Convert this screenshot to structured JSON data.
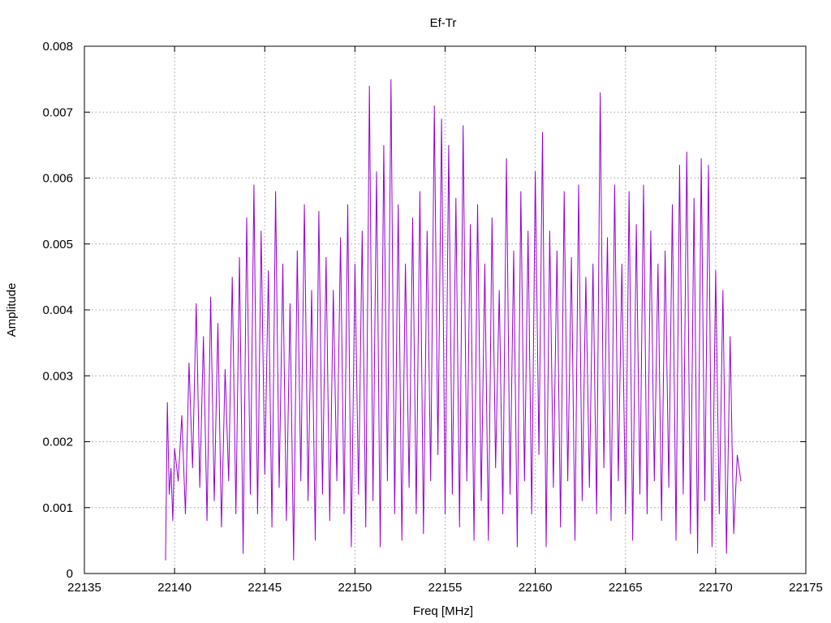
{
  "chart_data": {
    "type": "line",
    "title": "Ef-Tr",
    "xlabel": "Freq [MHz]",
    "ylabel": "Amplitude",
    "xlim": [
      22135,
      22175
    ],
    "ylim": [
      0,
      0.008
    ],
    "xticks": [
      "22135",
      "22140",
      "22145",
      "22150",
      "22155",
      "22160",
      "22165",
      "22170",
      "22175"
    ],
    "yticks": [
      "0",
      "0.001",
      "0.002",
      "0.003",
      "0.004",
      "0.005",
      "0.006",
      "0.007",
      "0.008"
    ],
    "grid": true,
    "legend": "none",
    "series_color": "#9400d3",
    "series": [
      {
        "x": [
          22139.5,
          22139.6,
          22139.7,
          22139.8,
          22139.9,
          22140.0,
          22140.2,
          22140.4,
          22140.6,
          22140.8,
          22141.0,
          22141.2,
          22141.4,
          22141.6,
          22141.8,
          22142.0,
          22142.2,
          22142.4,
          22142.6,
          22142.8,
          22143.0,
          22143.2,
          22143.4,
          22143.6,
          22143.8,
          22144.0,
          22144.2,
          22144.4,
          22144.6,
          22144.8,
          22145.0,
          22145.2,
          22145.4,
          22145.6,
          22145.8,
          22146.0,
          22146.2,
          22146.4,
          22146.6,
          22146.8,
          22147.0,
          22147.2,
          22147.4,
          22147.6,
          22147.8,
          22148.0,
          22148.2,
          22148.4,
          22148.6,
          22148.8,
          22149.0,
          22149.2,
          22149.4,
          22149.6,
          22149.8,
          22150.0,
          22150.2,
          22150.4,
          22150.6,
          22150.8,
          22151.0,
          22151.2,
          22151.4,
          22151.6,
          22151.8,
          22152.0,
          22152.2,
          22152.4,
          22152.6,
          22152.8,
          22153.0,
          22153.2,
          22153.4,
          22153.6,
          22153.8,
          22154.0,
          22154.2,
          22154.4,
          22154.6,
          22154.8,
          22155.0,
          22155.2,
          22155.4,
          22155.6,
          22155.8,
          22156.0,
          22156.2,
          22156.4,
          22156.6,
          22156.8,
          22157.0,
          22157.2,
          22157.4,
          22157.6,
          22157.8,
          22158.0,
          22158.2,
          22158.4,
          22158.6,
          22158.8,
          22159.0,
          22159.2,
          22159.4,
          22159.6,
          22159.8,
          22160.0,
          22160.2,
          22160.4,
          22160.6,
          22160.8,
          22161.0,
          22161.2,
          22161.4,
          22161.6,
          22161.8,
          22162.0,
          22162.2,
          22162.4,
          22162.6,
          22162.8,
          22163.0,
          22163.2,
          22163.4,
          22163.6,
          22163.8,
          22164.0,
          22164.2,
          22164.4,
          22164.6,
          22164.8,
          22165.0,
          22165.2,
          22165.4,
          22165.6,
          22165.8,
          22166.0,
          22166.2,
          22166.4,
          22166.6,
          22166.8,
          22167.0,
          22167.2,
          22167.4,
          22167.6,
          22167.8,
          22168.0,
          22168.2,
          22168.4,
          22168.6,
          22168.8,
          22169.0,
          22169.2,
          22169.4,
          22169.6,
          22169.8,
          22170.0,
          22170.2,
          22170.4,
          22170.6,
          22170.8,
          22171.0,
          22171.2,
          22171.4
        ],
        "y": [
          0.0002,
          0.0026,
          0.0012,
          0.0016,
          0.0008,
          0.0019,
          0.0014,
          0.0024,
          0.0009,
          0.0032,
          0.0016,
          0.0041,
          0.0013,
          0.0036,
          0.0008,
          0.0042,
          0.0011,
          0.0038,
          0.0007,
          0.0031,
          0.0014,
          0.0045,
          0.0009,
          0.0048,
          0.0003,
          0.0054,
          0.0012,
          0.0059,
          0.0009,
          0.0052,
          0.0015,
          0.0046,
          0.0007,
          0.0058,
          0.0013,
          0.0047,
          0.0008,
          0.0041,
          0.0002,
          0.0049,
          0.0014,
          0.0056,
          0.0011,
          0.0043,
          0.0005,
          0.0055,
          0.0012,
          0.0048,
          0.0008,
          0.0043,
          0.0014,
          0.0051,
          0.0009,
          0.0056,
          0.0004,
          0.0047,
          0.0012,
          0.0052,
          0.0007,
          0.0074,
          0.0011,
          0.0061,
          0.0004,
          0.0065,
          0.0014,
          0.0075,
          0.0009,
          0.0056,
          0.0005,
          0.0047,
          0.0013,
          0.0054,
          0.0009,
          0.0058,
          0.0006,
          0.0052,
          0.0014,
          0.0071,
          0.0018,
          0.0069,
          0.0009,
          0.0065,
          0.0012,
          0.0057,
          0.0007,
          0.0068,
          0.0014,
          0.0053,
          0.0005,
          0.0056,
          0.0011,
          0.0047,
          0.0005,
          0.0054,
          0.0016,
          0.0043,
          0.0009,
          0.0063,
          0.0012,
          0.0049,
          0.0004,
          0.0058,
          0.0014,
          0.0052,
          0.0009,
          0.0061,
          0.0018,
          0.0067,
          0.0004,
          0.0052,
          0.0013,
          0.0049,
          0.0007,
          0.0058,
          0.0014,
          0.0048,
          0.0005,
          0.0059,
          0.0011,
          0.0045,
          0.0013,
          0.0047,
          0.0009,
          0.0073,
          0.0016,
          0.0051,
          0.0008,
          0.0059,
          0.0014,
          0.0047,
          0.0009,
          0.0058,
          0.0005,
          0.0053,
          0.0012,
          0.0059,
          0.0009,
          0.0052,
          0.0014,
          0.0047,
          0.0008,
          0.0049,
          0.0013,
          0.0056,
          0.0005,
          0.0062,
          0.0012,
          0.0064,
          0.0006,
          0.0057,
          0.0003,
          0.0063,
          0.0011,
          0.0062,
          0.0004,
          0.0046,
          0.0009,
          0.0043,
          0.0003,
          0.0036,
          0.0006,
          0.0018,
          0.0014
        ]
      }
    ]
  }
}
